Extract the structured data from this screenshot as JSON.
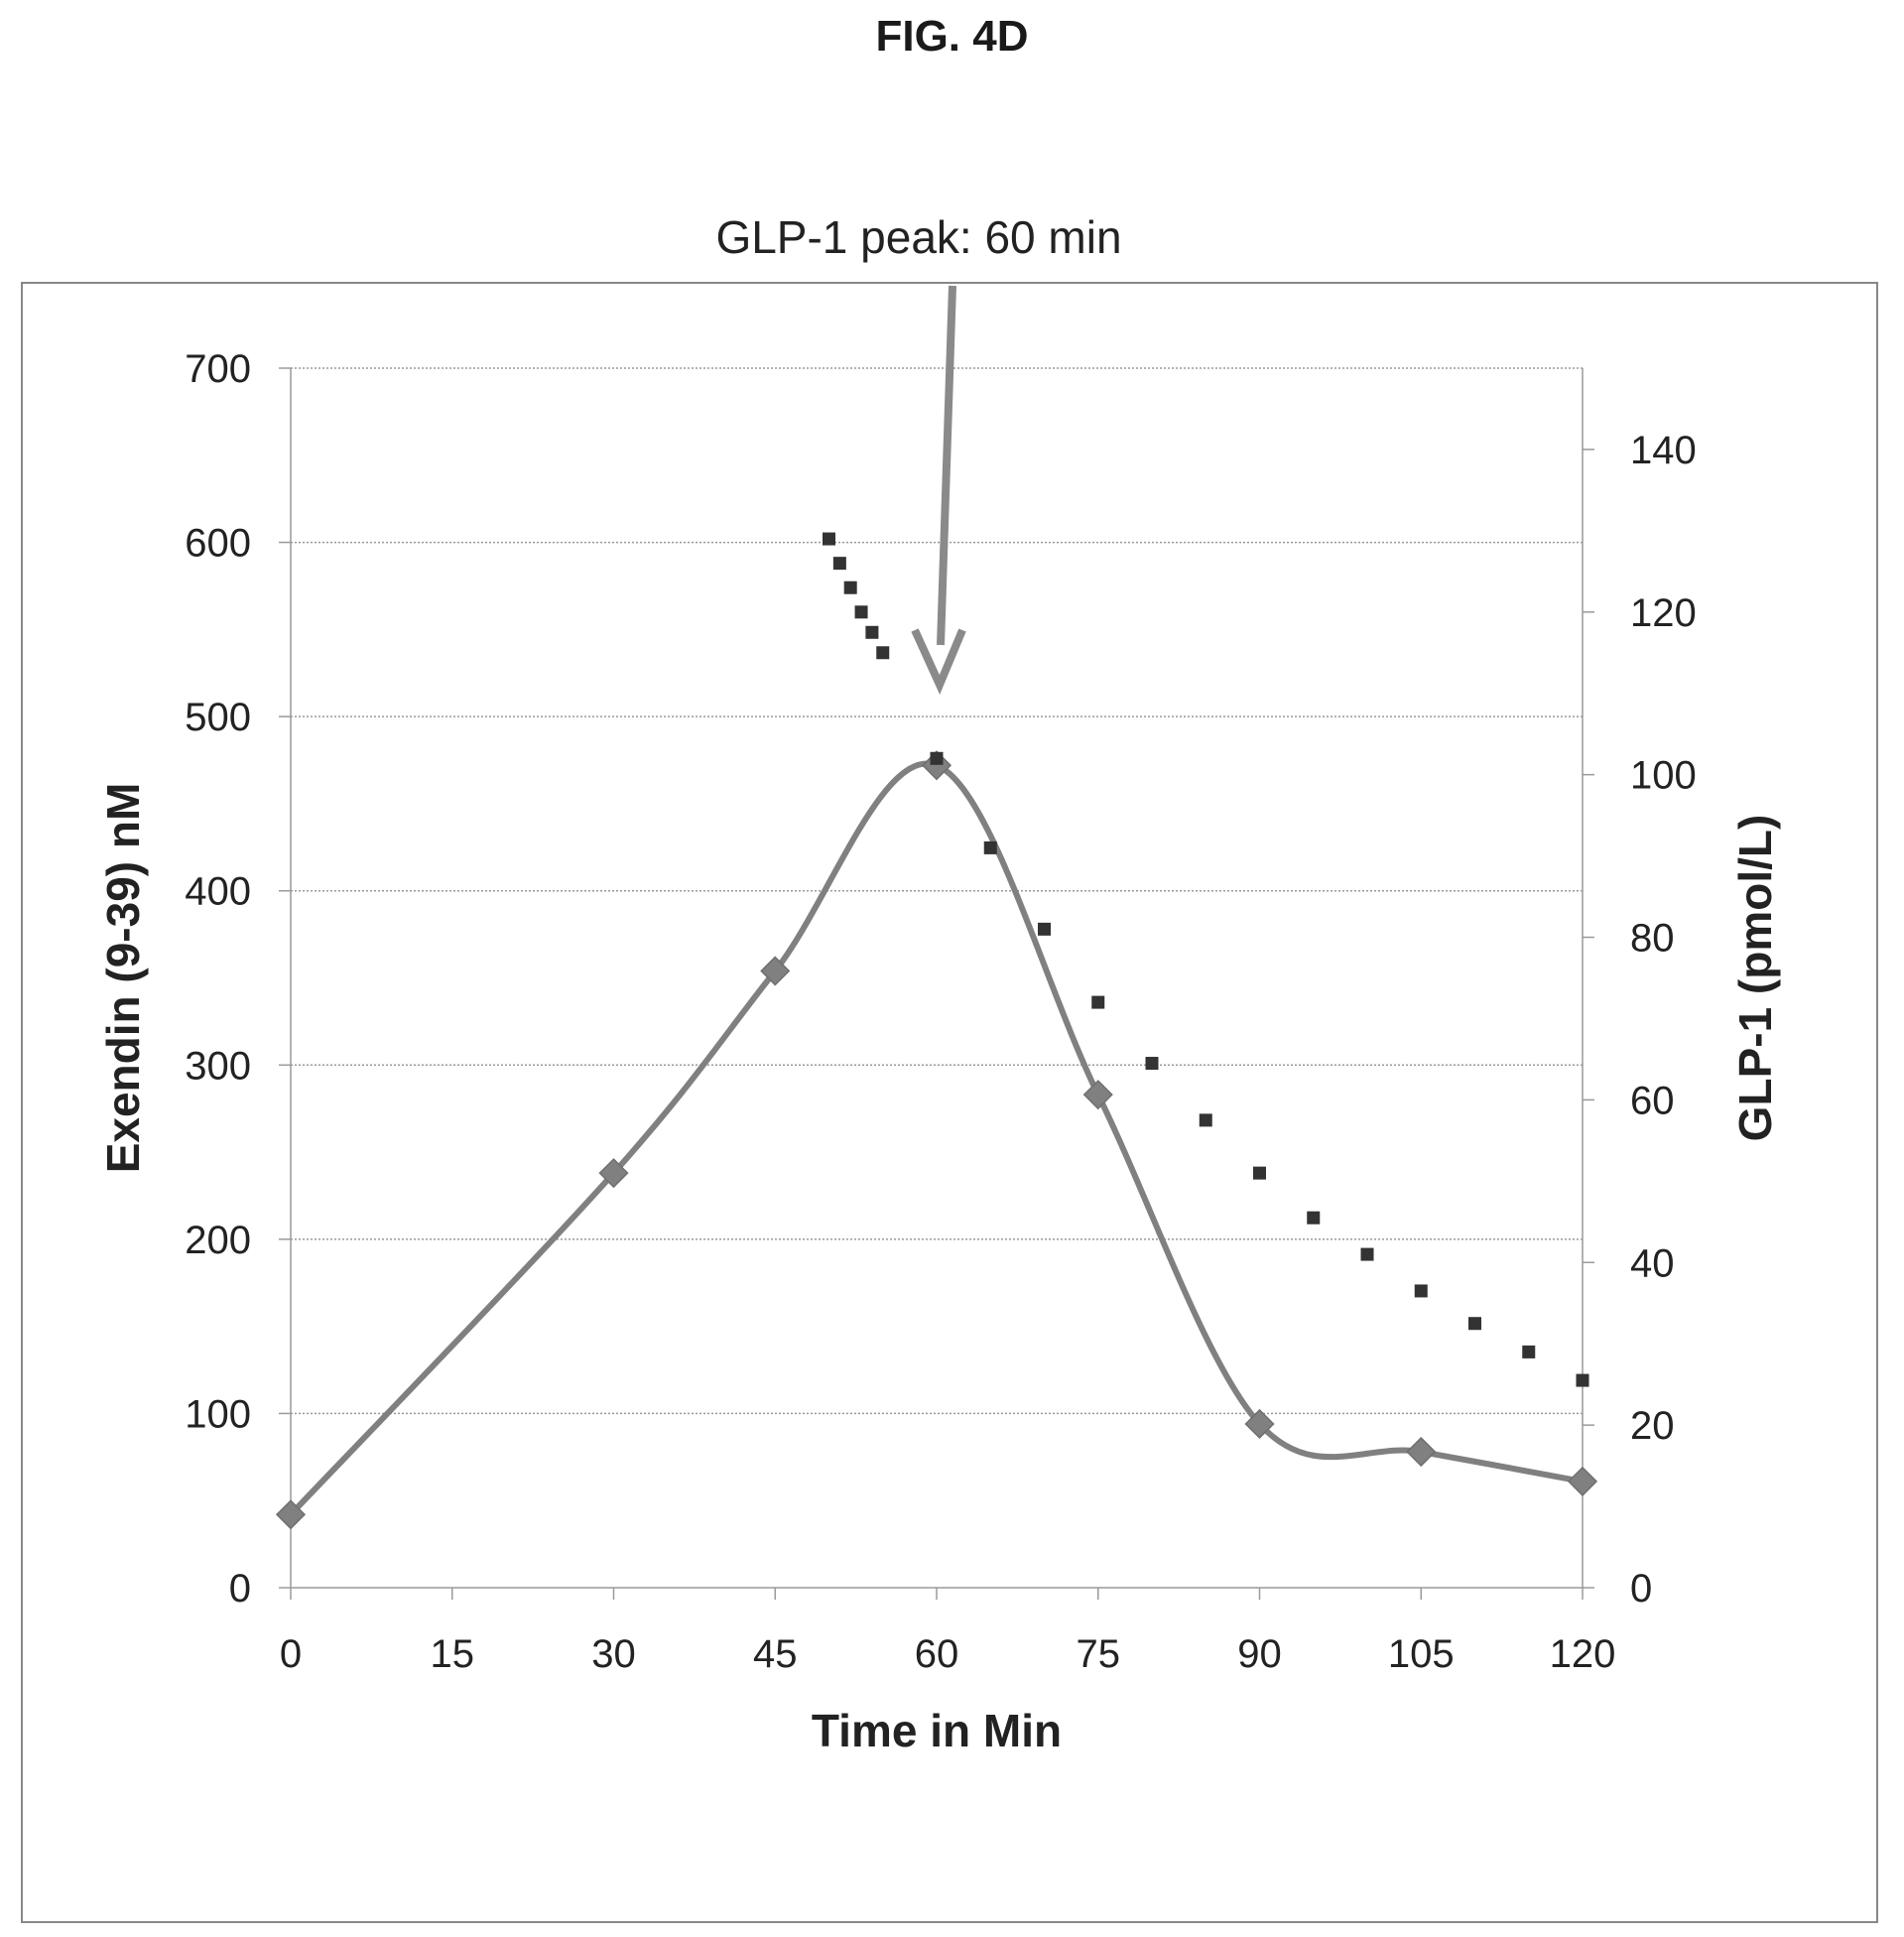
{
  "figure_label": "FIG. 4D",
  "chart_data": {
    "type": "line",
    "title": "",
    "xlabel": "Time in Min",
    "ylabel": "Exendin (9-39) nM",
    "y2label": "GLP-1  (pmol/L)",
    "xlim": [
      0,
      120
    ],
    "ylim": [
      0,
      700
    ],
    "y2lim": [
      0,
      150
    ],
    "x_ticks": [
      0,
      15,
      30,
      45,
      60,
      75,
      90,
      105,
      120
    ],
    "y_ticks": [
      0,
      100,
      200,
      300,
      400,
      500,
      600,
      700
    ],
    "y2_ticks": [
      0,
      20,
      40,
      60,
      80,
      100,
      120,
      140
    ],
    "grid": "horizontal",
    "series": [
      {
        "name": "",
        "axis": "left",
        "style": "smooth line with diamond markers",
        "color": "#808080",
        "x": [
          0,
          30,
          45,
          60,
          75,
          90,
          105,
          120
        ],
        "values": [
          42,
          238,
          354,
          472,
          283,
          94,
          78,
          61
        ]
      },
      {
        "name": "",
        "axis": "right",
        "style": "square markers",
        "color": "#333333",
        "x": [
          50,
          51,
          52,
          53,
          54,
          55,
          60,
          65,
          70,
          75,
          80,
          85,
          90,
          95,
          100,
          105,
          110,
          115,
          120
        ],
        "values": [
          129,
          126,
          123,
          120,
          117.5,
          115,
          102,
          91,
          81,
          72,
          64.5,
          57.5,
          51,
          45.5,
          41,
          36.5,
          32.5,
          29,
          25.5
        ]
      }
    ],
    "annotations": [
      {
        "text": "GLP-1 peak: 60 min",
        "x": 60,
        "type": "arrow"
      }
    ]
  }
}
